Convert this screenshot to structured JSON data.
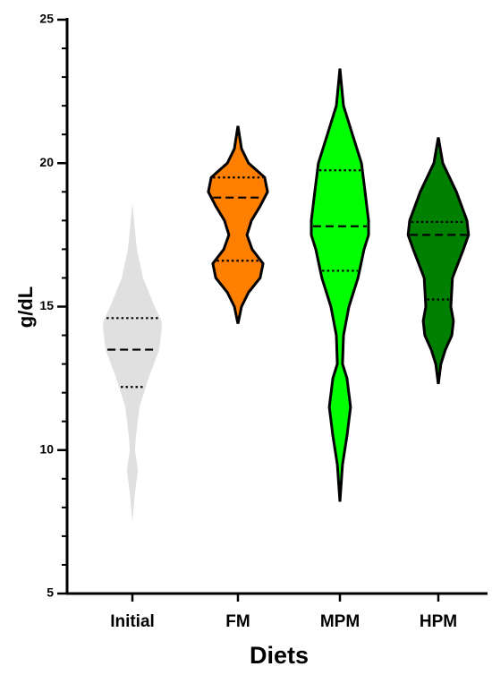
{
  "chart_data": {
    "type": "violin",
    "y_label": "g/dL",
    "x_label": "Diets",
    "categories": [
      "Initial",
      "FM",
      "MPM",
      "HPM"
    ],
    "ylim": [
      5,
      25
    ],
    "yticks": [
      5,
      10,
      15,
      20,
      25
    ],
    "yminor_step": 1,
    "series": [
      {
        "color": "#e0e0e0",
        "outline": false,
        "y": [
          18.6,
          17,
          16,
          15,
          14.5,
          14.3,
          13.5,
          12.5,
          11.5,
          10.5,
          10,
          9.3,
          8.5,
          7.5
        ],
        "width": [
          0,
          0.14,
          0.33,
          0.69,
          0.9,
          0.92,
          0.83,
          0.5,
          0.22,
          0.11,
          0.08,
          0.17,
          0.08,
          0
        ],
        "q1": 12.2,
        "median": 13.5,
        "q3": 14.6
      },
      {
        "color": "#ff7f00",
        "outline": true,
        "y": [
          21.3,
          20.5,
          20,
          19.5,
          19,
          18.5,
          18,
          17.5,
          17,
          16.5,
          16,
          15.5,
          15,
          14.4
        ],
        "width": [
          0,
          0.11,
          0.33,
          0.83,
          0.92,
          0.69,
          0.42,
          0.28,
          0.44,
          0.78,
          0.69,
          0.33,
          0.11,
          0
        ],
        "q1": 16.6,
        "median": 18.8,
        "q3": 19.5
      },
      {
        "color": "#00ff00",
        "outline": true,
        "y": [
          23.3,
          22,
          21,
          20,
          19,
          18,
          17.5,
          17,
          16,
          15,
          14,
          13,
          12.5,
          11.5,
          10.5,
          9.5,
          8.2
        ],
        "width": [
          0,
          0.11,
          0.39,
          0.67,
          0.78,
          0.89,
          0.89,
          0.75,
          0.56,
          0.28,
          0.11,
          0.08,
          0.22,
          0.33,
          0.22,
          0.08,
          0
        ],
        "q1": 16.25,
        "median": 17.8,
        "q3": 19.75
      },
      {
        "color": "#008000",
        "outline": true,
        "y": [
          20.9,
          20,
          19,
          18,
          17.5,
          17,
          16,
          15,
          14.5,
          14,
          13.5,
          13,
          12.3
        ],
        "width": [
          0,
          0.14,
          0.56,
          0.89,
          0.94,
          0.78,
          0.44,
          0.39,
          0.47,
          0.42,
          0.22,
          0.08,
          0
        ],
        "q1": 15.25,
        "median": 17.5,
        "q3": 17.95
      }
    ]
  }
}
